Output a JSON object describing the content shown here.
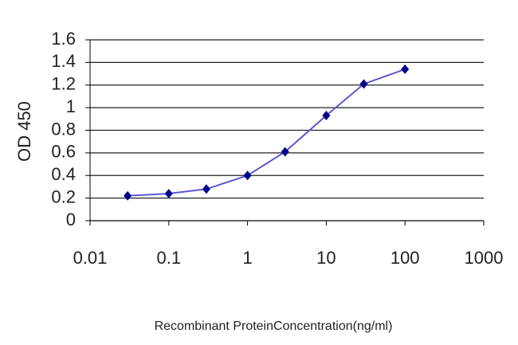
{
  "chart_data": {
    "type": "line",
    "x_label": "Recombinant ProteinConcentration(ng/ml)",
    "y_label": "OD 450",
    "xscale": "log",
    "grid": true,
    "series": [
      {
        "color": "#5a5ad0",
        "marker_color": "#00008b",
        "x": [
          0.03,
          0.1,
          0.3,
          1,
          3,
          10,
          30,
          100
        ],
        "values": [
          0.22,
          0.24,
          0.28,
          0.4,
          0.61,
          0.93,
          1.21,
          1.34
        ]
      }
    ],
    "xlim": [
      0.01,
      1000
    ],
    "xticks": [
      0.01,
      0.1,
      1,
      10,
      100,
      1000
    ],
    "ylim": [
      0,
      1.6
    ],
    "yticks": [
      0,
      0.2,
      0.4,
      0.6,
      0.8,
      1,
      1.2,
      1.4,
      1.6
    ]
  }
}
